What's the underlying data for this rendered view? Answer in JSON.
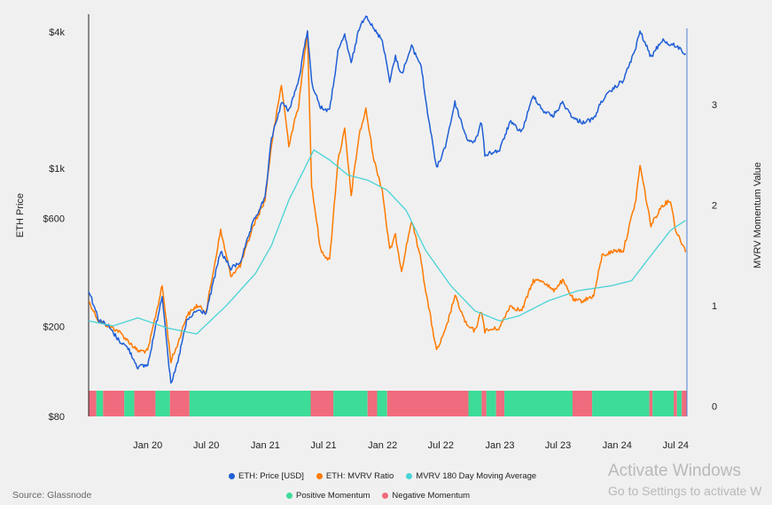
{
  "chart_data": {
    "type": "line",
    "left_axis": {
      "label": "ETH Price",
      "scale": "log",
      "range": [
        80,
        4800
      ],
      "ticks": [
        {
          "value": 80,
          "label": "$80"
        },
        {
          "value": 200,
          "label": "$200"
        },
        {
          "value": 600,
          "label": "$600"
        },
        {
          "value": 1000,
          "label": "$1k"
        },
        {
          "value": 4000,
          "label": "$4k"
        }
      ]
    },
    "right_axis": {
      "label": "MVRV Momentum Value",
      "range": [
        -0.1,
        3.9
      ],
      "ticks": [
        {
          "value": 0,
          "label": "0"
        },
        {
          "value": 1,
          "label": "1"
        },
        {
          "value": 2,
          "label": "2"
        },
        {
          "value": 3,
          "label": "3"
        }
      ]
    },
    "x_axis": {
      "range": [
        "2019-07-01",
        "2024-08-05"
      ],
      "ticks": [
        {
          "date": "2020-01-01",
          "label": "Jan 20"
        },
        {
          "date": "2020-07-01",
          "label": "Jul 20"
        },
        {
          "date": "2021-01-01",
          "label": "Jan 21"
        },
        {
          "date": "2021-07-01",
          "label": "Jul 21"
        },
        {
          "date": "2022-01-01",
          "label": "Jan 22"
        },
        {
          "date": "2022-07-01",
          "label": "Jul 22"
        },
        {
          "date": "2023-01-01",
          "label": "Jan 23"
        },
        {
          "date": "2023-07-01",
          "label": "Jul 23"
        },
        {
          "date": "2024-01-01",
          "label": "Jan 24"
        },
        {
          "date": "2024-07-01",
          "label": "Jul 24"
        }
      ]
    },
    "series": [
      {
        "name": "ETH: Price [USD]",
        "axis": "left",
        "color": "#1f5fd6",
        "points": [
          [
            "2019-07-01",
            290
          ],
          [
            "2019-08-01",
            215
          ],
          [
            "2019-09-01",
            200
          ],
          [
            "2019-10-01",
            175
          ],
          [
            "2019-11-01",
            160
          ],
          [
            "2019-12-01",
            132
          ],
          [
            "2020-01-01",
            135
          ],
          [
            "2020-02-15",
            275
          ],
          [
            "2020-03-13",
            110
          ],
          [
            "2020-04-01",
            135
          ],
          [
            "2020-05-01",
            210
          ],
          [
            "2020-06-01",
            235
          ],
          [
            "2020-07-01",
            230
          ],
          [
            "2020-08-15",
            430
          ],
          [
            "2020-09-15",
            360
          ],
          [
            "2020-10-15",
            385
          ],
          [
            "2020-11-25",
            580
          ],
          [
            "2020-12-31",
            740
          ],
          [
            "2021-01-20",
            1350
          ],
          [
            "2021-02-20",
            1950
          ],
          [
            "2021-03-15",
            1800
          ],
          [
            "2021-04-15",
            2450
          ],
          [
            "2021-05-12",
            4100
          ],
          [
            "2021-05-25",
            2400
          ],
          [
            "2021-06-22",
            1850
          ],
          [
            "2021-07-20",
            1800
          ],
          [
            "2021-08-15",
            3250
          ],
          [
            "2021-09-05",
            3900
          ],
          [
            "2021-09-25",
            2900
          ],
          [
            "2021-10-20",
            4150
          ],
          [
            "2021-11-10",
            4800
          ],
          [
            "2021-12-05",
            4100
          ],
          [
            "2021-12-31",
            3700
          ],
          [
            "2022-01-23",
            2450
          ],
          [
            "2022-02-10",
            3100
          ],
          [
            "2022-03-01",
            2600
          ],
          [
            "2022-04-01",
            3450
          ],
          [
            "2022-05-01",
            2850
          ],
          [
            "2022-05-15",
            2000
          ],
          [
            "2022-06-18",
            995
          ],
          [
            "2022-07-15",
            1250
          ],
          [
            "2022-08-14",
            1950
          ],
          [
            "2022-09-20",
            1350
          ],
          [
            "2022-10-15",
            1300
          ],
          [
            "2022-11-05",
            1600
          ],
          [
            "2022-11-15",
            1150
          ],
          [
            "2022-12-31",
            1200
          ],
          [
            "2023-02-01",
            1600
          ],
          [
            "2023-03-10",
            1450
          ],
          [
            "2023-04-15",
            2100
          ],
          [
            "2023-05-15",
            1800
          ],
          [
            "2023-06-15",
            1700
          ],
          [
            "2023-07-15",
            1950
          ],
          [
            "2023-08-20",
            1650
          ],
          [
            "2023-09-15",
            1600
          ],
          [
            "2023-10-20",
            1650
          ],
          [
            "2023-11-15",
            2000
          ],
          [
            "2023-12-28",
            2300
          ],
          [
            "2024-01-20",
            2450
          ],
          [
            "2024-02-28",
            3400
          ],
          [
            "2024-03-12",
            4050
          ],
          [
            "2024-04-15",
            3100
          ],
          [
            "2024-05-20",
            3700
          ],
          [
            "2024-06-15",
            3500
          ],
          [
            "2024-07-01",
            3500
          ],
          [
            "2024-08-01",
            3200
          ]
        ]
      },
      {
        "name": "ETH: MVRV Ratio",
        "axis": "right",
        "color": "#ff7a00",
        "points": [
          [
            "2019-07-01",
            1.05
          ],
          [
            "2019-08-01",
            0.85
          ],
          [
            "2019-09-01",
            0.8
          ],
          [
            "2019-10-01",
            0.75
          ],
          [
            "2019-11-01",
            0.65
          ],
          [
            "2019-12-01",
            0.55
          ],
          [
            "2020-01-01",
            0.55
          ],
          [
            "2020-02-15",
            1.2
          ],
          [
            "2020-03-13",
            0.45
          ],
          [
            "2020-04-01",
            0.6
          ],
          [
            "2020-05-01",
            0.9
          ],
          [
            "2020-06-01",
            1.0
          ],
          [
            "2020-07-01",
            0.95
          ],
          [
            "2020-08-15",
            1.75
          ],
          [
            "2020-09-15",
            1.3
          ],
          [
            "2020-10-15",
            1.4
          ],
          [
            "2020-11-25",
            1.8
          ],
          [
            "2020-12-31",
            2.05
          ],
          [
            "2021-01-20",
            2.6
          ],
          [
            "2021-02-20",
            3.2
          ],
          [
            "2021-03-15",
            2.6
          ],
          [
            "2021-04-15",
            3.0
          ],
          [
            "2021-05-12",
            3.75
          ],
          [
            "2021-05-25",
            2.2
          ],
          [
            "2021-06-22",
            1.55
          ],
          [
            "2021-07-20",
            1.45
          ],
          [
            "2021-08-15",
            2.45
          ],
          [
            "2021-09-05",
            2.75
          ],
          [
            "2021-09-25",
            2.1
          ],
          [
            "2021-10-20",
            2.7
          ],
          [
            "2021-11-10",
            2.95
          ],
          [
            "2021-12-05",
            2.45
          ],
          [
            "2021-12-31",
            2.15
          ],
          [
            "2022-01-23",
            1.55
          ],
          [
            "2022-02-10",
            1.7
          ],
          [
            "2022-03-01",
            1.35
          ],
          [
            "2022-04-01",
            1.85
          ],
          [
            "2022-05-01",
            1.45
          ],
          [
            "2022-05-15",
            1.15
          ],
          [
            "2022-06-18",
            0.55
          ],
          [
            "2022-07-15",
            0.75
          ],
          [
            "2022-08-14",
            1.1
          ],
          [
            "2022-09-20",
            0.8
          ],
          [
            "2022-10-15",
            0.75
          ],
          [
            "2022-11-05",
            0.95
          ],
          [
            "2022-11-15",
            0.75
          ],
          [
            "2022-12-31",
            0.78
          ],
          [
            "2023-02-01",
            1.0
          ],
          [
            "2023-03-10",
            0.95
          ],
          [
            "2023-04-15",
            1.25
          ],
          [
            "2023-05-15",
            1.25
          ],
          [
            "2023-06-15",
            1.15
          ],
          [
            "2023-07-15",
            1.25
          ],
          [
            "2023-08-20",
            1.05
          ],
          [
            "2023-09-15",
            1.05
          ],
          [
            "2023-10-20",
            1.1
          ],
          [
            "2023-11-15",
            1.5
          ],
          [
            "2023-12-28",
            1.55
          ],
          [
            "2024-01-20",
            1.55
          ],
          [
            "2024-02-28",
            2.05
          ],
          [
            "2024-03-12",
            2.4
          ],
          [
            "2024-04-15",
            1.8
          ],
          [
            "2024-05-20",
            2.0
          ],
          [
            "2024-06-15",
            2.05
          ],
          [
            "2024-07-01",
            1.75
          ],
          [
            "2024-08-01",
            1.55
          ]
        ]
      },
      {
        "name": "MVRV 180 Day Moving Average",
        "axis": "right",
        "color": "#48d3d6",
        "points": [
          [
            "2019-07-01",
            0.85
          ],
          [
            "2019-09-15",
            0.8
          ],
          [
            "2019-12-01",
            0.88
          ],
          [
            "2020-03-01",
            0.78
          ],
          [
            "2020-06-01",
            0.72
          ],
          [
            "2020-09-01",
            1.0
          ],
          [
            "2020-12-01",
            1.32
          ],
          [
            "2021-01-20",
            1.6
          ],
          [
            "2021-03-15",
            2.05
          ],
          [
            "2021-06-01",
            2.55
          ],
          [
            "2021-07-20",
            2.45
          ],
          [
            "2021-09-15",
            2.3
          ],
          [
            "2021-11-15",
            2.25
          ],
          [
            "2022-01-15",
            2.15
          ],
          [
            "2022-03-15",
            1.95
          ],
          [
            "2022-05-15",
            1.55
          ],
          [
            "2022-08-01",
            1.2
          ],
          [
            "2022-10-15",
            0.95
          ],
          [
            "2022-12-31",
            0.85
          ],
          [
            "2023-03-01",
            0.9
          ],
          [
            "2023-06-01",
            1.05
          ],
          [
            "2023-09-01",
            1.15
          ],
          [
            "2023-12-15",
            1.2
          ],
          [
            "2024-02-15",
            1.25
          ],
          [
            "2024-04-15",
            1.5
          ],
          [
            "2024-06-15",
            1.75
          ],
          [
            "2024-08-01",
            1.85
          ]
        ]
      }
    ],
    "momentum": {
      "positive_color": "#3ddc97",
      "negative_color": "#f06b7d",
      "intervals": [
        [
          "2019-07-01",
          "2019-07-25",
          "negative"
        ],
        [
          "2019-07-25",
          "2019-08-15",
          "positive"
        ],
        [
          "2019-08-15",
          "2019-10-20",
          "negative"
        ],
        [
          "2019-10-20",
          "2019-11-20",
          "positive"
        ],
        [
          "2019-11-20",
          "2020-01-25",
          "negative"
        ],
        [
          "2020-01-25",
          "2020-03-10",
          "positive"
        ],
        [
          "2020-03-10",
          "2020-05-10",
          "negative"
        ],
        [
          "2020-05-10",
          "2021-05-22",
          "positive"
        ],
        [
          "2021-05-22",
          "2021-08-01",
          "negative"
        ],
        [
          "2021-08-01",
          "2021-11-15",
          "positive"
        ],
        [
          "2021-11-15",
          "2021-12-15",
          "negative"
        ],
        [
          "2021-12-15",
          "2022-01-15",
          "positive"
        ],
        [
          "2022-01-15",
          "2022-09-25",
          "negative"
        ],
        [
          "2022-09-25",
          "2022-11-05",
          "positive"
        ],
        [
          "2022-11-05",
          "2022-11-20",
          "negative"
        ],
        [
          "2022-11-20",
          "2022-12-20",
          "positive"
        ],
        [
          "2022-12-20",
          "2023-01-15",
          "negative"
        ],
        [
          "2023-01-15",
          "2023-08-15",
          "positive"
        ],
        [
          "2023-08-15",
          "2023-10-15",
          "negative"
        ],
        [
          "2023-10-15",
          "2024-04-10",
          "positive"
        ],
        [
          "2024-04-10",
          "2024-04-20",
          "negative"
        ],
        [
          "2024-04-20",
          "2024-06-25",
          "positive"
        ],
        [
          "2024-06-25",
          "2024-07-05",
          "negative"
        ],
        [
          "2024-07-05",
          "2024-07-20",
          "positive"
        ],
        [
          "2024-07-20",
          "2024-08-05",
          "negative"
        ]
      ]
    },
    "legend": {
      "placement": "bottom-center",
      "row1": [
        {
          "label": "ETH: Price [USD]",
          "color": "#1f5fd6"
        },
        {
          "label": "ETH: MVRV Ratio",
          "color": "#ff7a00"
        },
        {
          "label": "MVRV 180 Day Moving Average",
          "color": "#48d3d6"
        }
      ],
      "row2": [
        {
          "label": "Positive Momentum",
          "color": "#3ddc97"
        },
        {
          "label": "Negative Momentum",
          "color": "#f06b7d"
        }
      ]
    },
    "grid": false,
    "source": "Source: Glassnode"
  },
  "watermark": {
    "title": "Activate Windows",
    "subtitle": "Go to Settings to activate W"
  }
}
